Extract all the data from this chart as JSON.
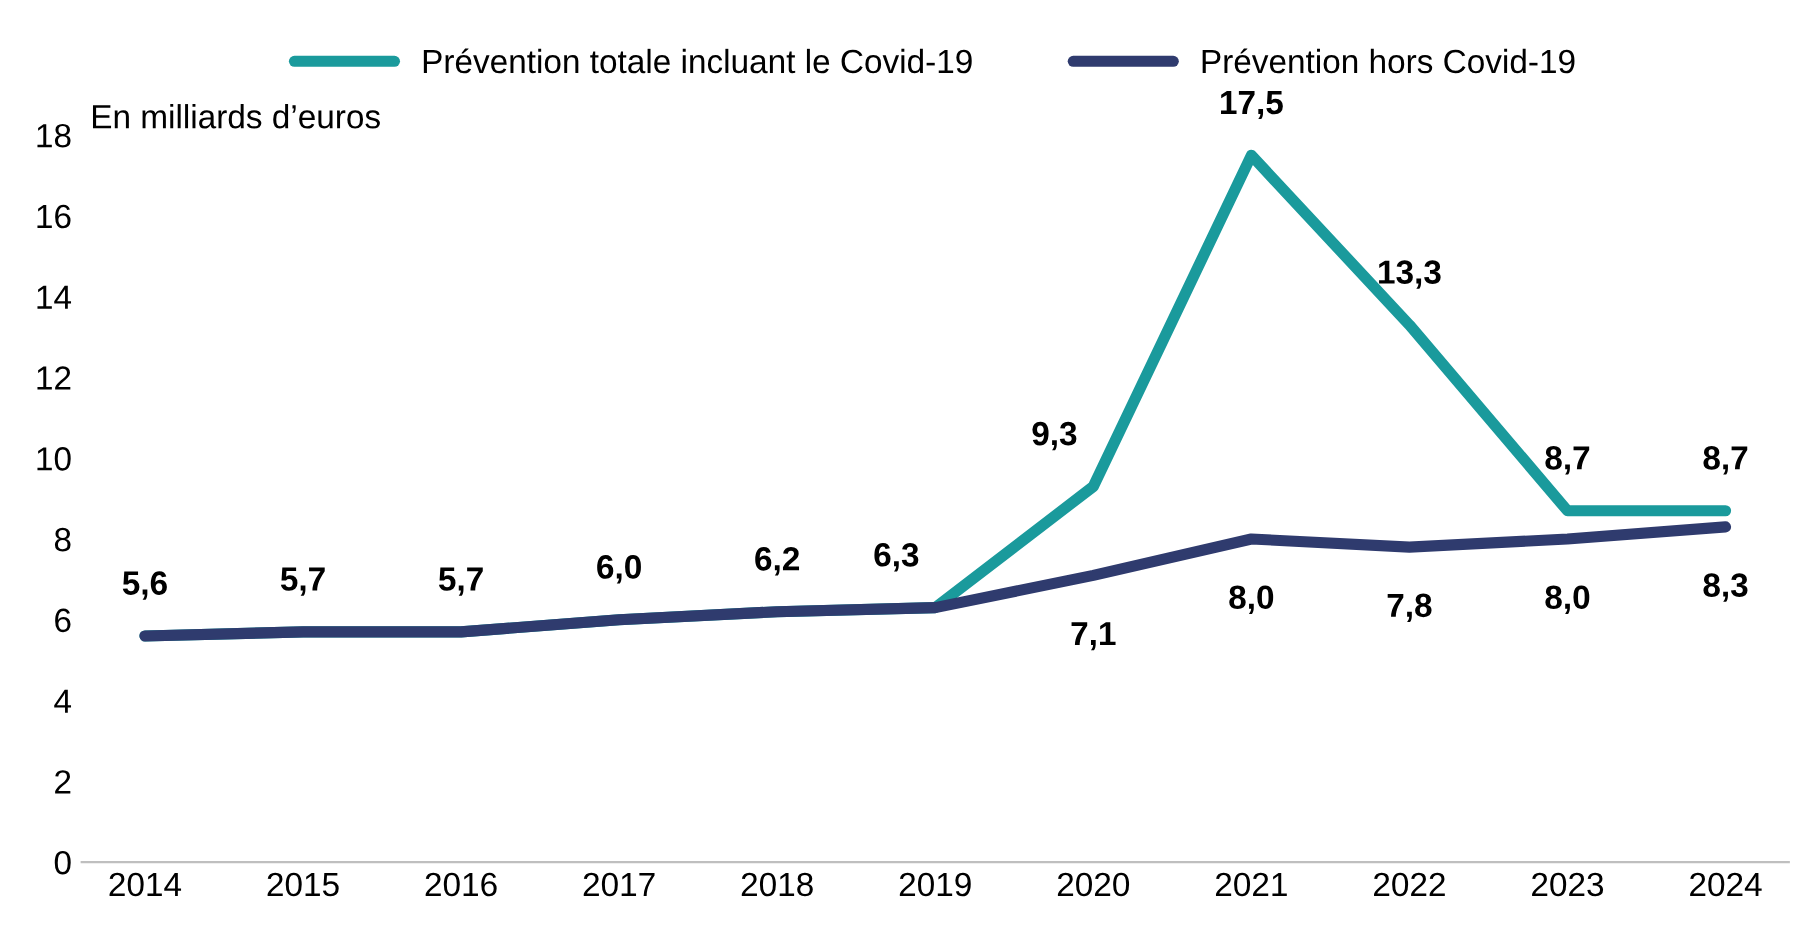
{
  "chart_data": {
    "type": "line",
    "categories": [
      "2014",
      "2015",
      "2016",
      "2017",
      "2018",
      "2019",
      "2020",
      "2021",
      "2022",
      "2023",
      "2024"
    ],
    "series": [
      {
        "name": "Prévention totale incluant le Covid-19",
        "color": "#1a9a9c",
        "values": [
          5.6,
          5.7,
          5.7,
          6.0,
          6.2,
          6.3,
          9.3,
          17.5,
          13.3,
          8.7,
          8.7
        ],
        "value_labels": [
          "5,6",
          "5,7",
          "5,7",
          "6,0",
          "6,2",
          "6,3",
          "9,3",
          "17,5",
          "13,3",
          "8,7",
          "8,7"
        ]
      },
      {
        "name": "Prévention hors Covid-19",
        "color": "#2f3b6e",
        "values": [
          5.6,
          5.7,
          5.7,
          6.0,
          6.2,
          6.3,
          7.1,
          8.0,
          7.8,
          8.0,
          8.3
        ],
        "value_labels": [
          null,
          null,
          null,
          null,
          null,
          null,
          "7,1",
          "8,0",
          "7,8",
          "8,0",
          "8,3"
        ]
      }
    ],
    "ylim": [
      0,
      18
    ],
    "yticks": [
      0,
      2,
      4,
      6,
      8,
      10,
      12,
      14,
      16,
      18
    ],
    "grid": false,
    "legend": "top",
    "marker": "none",
    "line_style": "solid",
    "annotations": [
      "En milliards d’euros"
    ]
  }
}
